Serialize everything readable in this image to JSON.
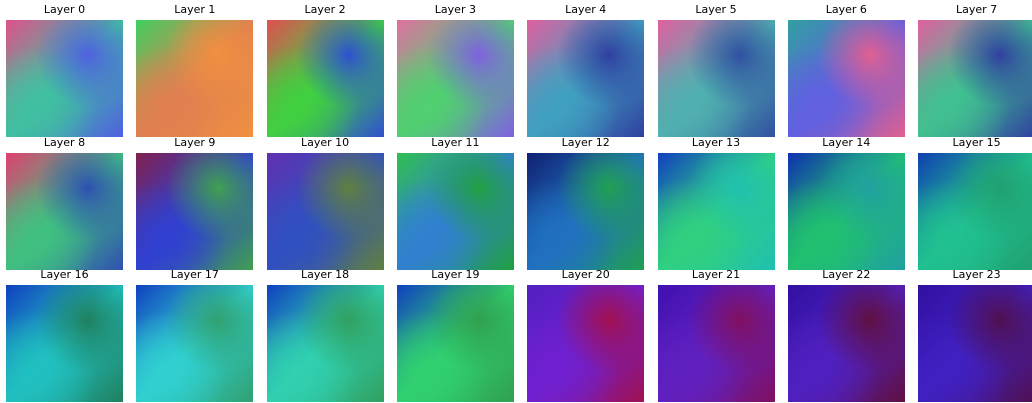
{
  "panels": [
    {
      "title": "Layer 0",
      "colors": [
        "#e0508a",
        "#40c0a0",
        "#5060e0"
      ]
    },
    {
      "title": "Layer 1",
      "colors": [
        "#40d060",
        "#e08050",
        "#f09040"
      ]
    },
    {
      "title": "Layer 2",
      "colors": [
        "#e05050",
        "#40d040",
        "#3050d0"
      ]
    },
    {
      "title": "Layer 3",
      "colors": [
        "#e070a0",
        "#50d070",
        "#8060e0"
      ]
    },
    {
      "title": "Layer 4",
      "colors": [
        "#e060a0",
        "#40a0c0",
        "#3040a0"
      ]
    },
    {
      "title": "Layer 5",
      "colors": [
        "#e060a0",
        "#50b0b0",
        "#3050a0"
      ]
    },
    {
      "title": "Layer 6",
      "colors": [
        "#30a0a0",
        "#6060e0",
        "#e06090"
      ]
    },
    {
      "title": "Layer 7",
      "colors": [
        "#e060a0",
        "#40c090",
        "#3040a0"
      ]
    },
    {
      "title": "Layer 8",
      "colors": [
        "#e04070",
        "#40c080",
        "#3050b0"
      ]
    },
    {
      "title": "Layer 9",
      "colors": [
        "#802050",
        "#3040d0",
        "#40a050"
      ]
    },
    {
      "title": "Layer 10",
      "colors": [
        "#6030b0",
        "#3050c0",
        "#608040"
      ]
    },
    {
      "title": "Layer 11",
      "colors": [
        "#30c050",
        "#3080d0",
        "#20a040"
      ]
    },
    {
      "title": "Layer 12",
      "colors": [
        "#102070",
        "#2070c0",
        "#20a050"
      ]
    },
    {
      "title": "Layer 13",
      "colors": [
        "#1040c0",
        "#30d080",
        "#20c0b0"
      ]
    },
    {
      "title": "Layer 14",
      "colors": [
        "#1030b0",
        "#20c070",
        "#20a0a0"
      ]
    },
    {
      "title": "Layer 15",
      "colors": [
        "#1040b0",
        "#20c090",
        "#20a070"
      ]
    },
    {
      "title": "Layer 16",
      "colors": [
        "#1040c0",
        "#20c0c0",
        "#208060"
      ]
    },
    {
      "title": "Layer 17",
      "colors": [
        "#1040c0",
        "#30d0d0",
        "#30a070"
      ]
    },
    {
      "title": "Layer 18",
      "colors": [
        "#1040c0",
        "#30d0b0",
        "#30a060"
      ]
    },
    {
      "title": "Layer 19",
      "colors": [
        "#1040c0",
        "#30d070",
        "#30a050"
      ]
    },
    {
      "title": "Layer 20",
      "colors": [
        "#5020c0",
        "#7020d0",
        "#a01050"
      ]
    },
    {
      "title": "Layer 21",
      "colors": [
        "#4010b0",
        "#6020c0",
        "#801060"
      ]
    },
    {
      "title": "Layer 22",
      "colors": [
        "#3010a0",
        "#5020c0",
        "#601040"
      ]
    },
    {
      "title": "Layer 23",
      "colors": [
        "#3010a0",
        "#4020c0",
        "#501050"
      ]
    }
  ]
}
